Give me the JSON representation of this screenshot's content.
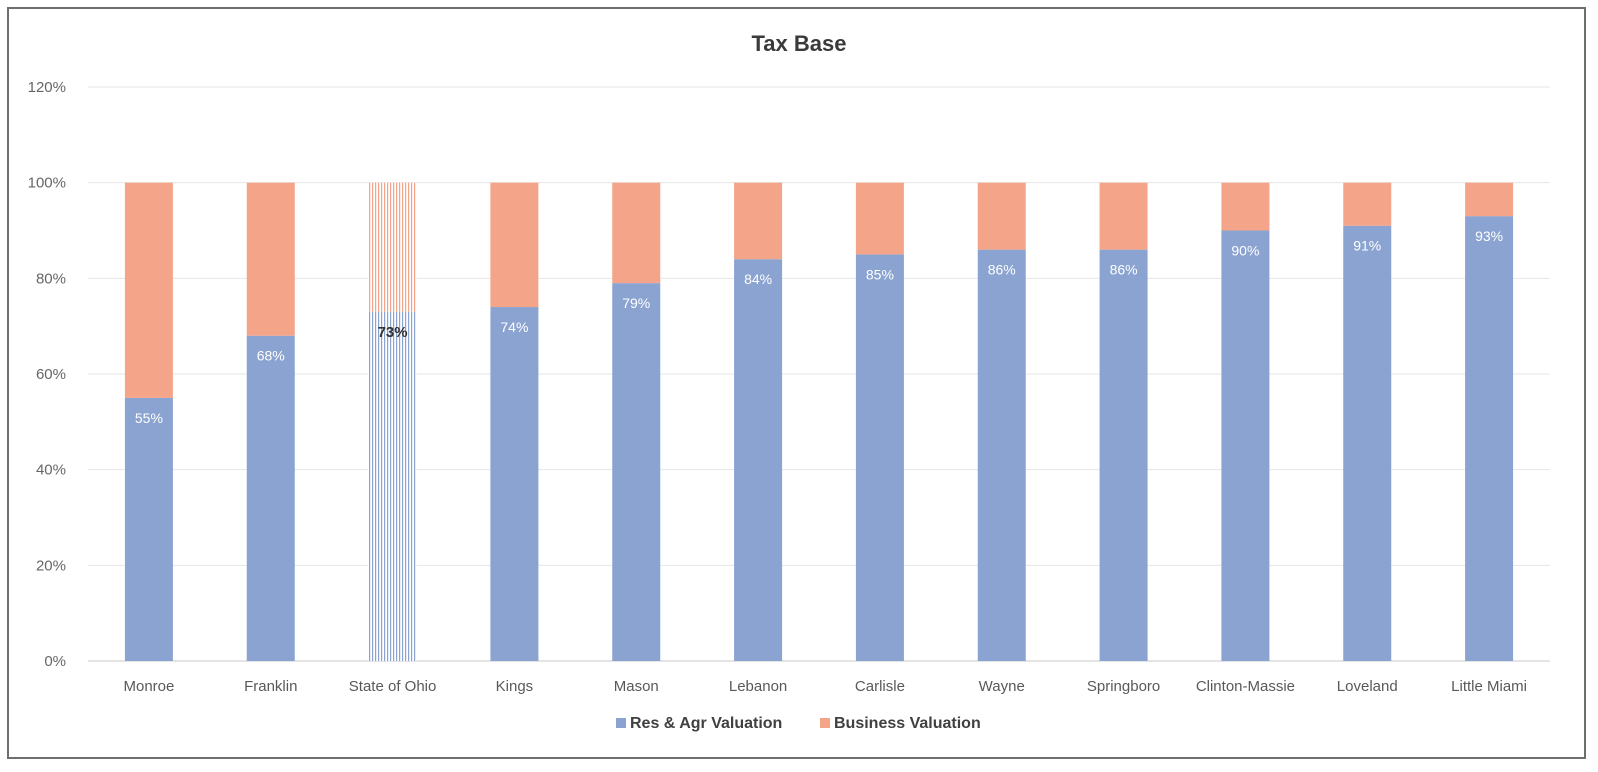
{
  "chart_data": {
    "type": "bar",
    "stacked": true,
    "title": "Tax Base",
    "xlabel": "",
    "ylabel": "",
    "ylim": [
      0,
      120
    ],
    "yticks": [
      "0%",
      "20%",
      "40%",
      "60%",
      "80%",
      "100%",
      "120%"
    ],
    "grid": true,
    "legend_position": "bottom",
    "categories": [
      "Monroe",
      "Franklin",
      "State of Ohio",
      "Kings",
      "Mason",
      "Lebanon",
      "Carlisle",
      "Wayne",
      "Springboro",
      "Clinton-Massie",
      "Loveland",
      "Little Miami"
    ],
    "series": [
      {
        "name": "Res & Agr Valuation",
        "color": "#8aa3d0",
        "values": [
          55,
          68,
          73,
          74,
          79,
          84,
          85,
          86,
          86,
          90,
          91,
          93
        ],
        "labels": [
          "55%",
          "68%",
          "73%",
          "74%",
          "79%",
          "84%",
          "85%",
          "86%",
          "86%",
          "90%",
          "91%",
          "93%"
        ]
      },
      {
        "name": "Business Valuation",
        "color": "#f4a489",
        "values": [
          45,
          32,
          27,
          26,
          21,
          16,
          15,
          14,
          14,
          10,
          9,
          7
        ]
      }
    ],
    "highlight_category": "State of Ohio"
  }
}
